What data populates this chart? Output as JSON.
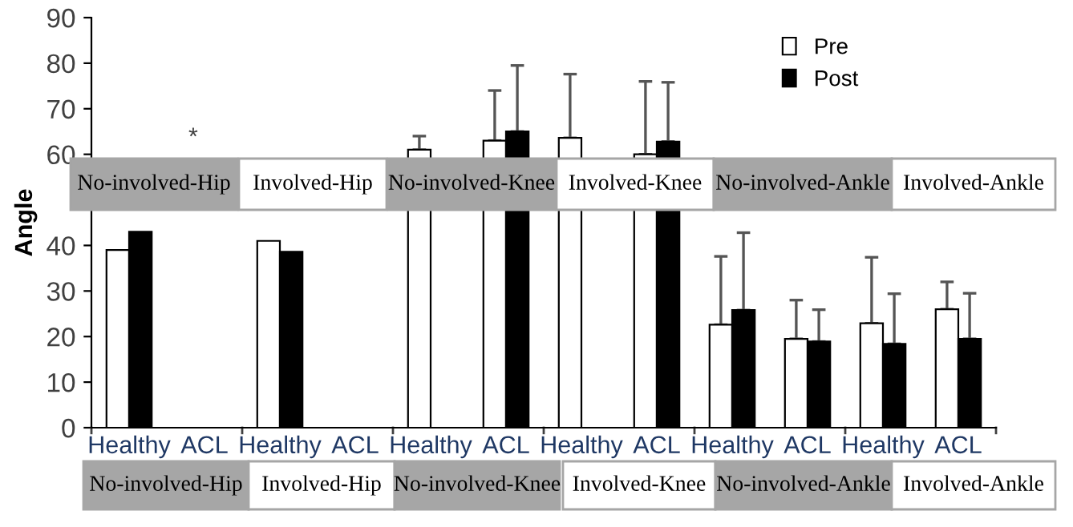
{
  "chart_data": {
    "type": "bar",
    "ylabel": "Angle",
    "categories": [
      "Healthy",
      "ACL",
      "Healthy",
      "ACL",
      "Healthy",
      "ACL",
      "Healthy",
      "ACL",
      "Healthy",
      "ACL",
      "Healthy",
      "ACL"
    ],
    "series": [
      {
        "name": "Pre",
        "color": "#ffffff",
        "values": [
          39,
          null,
          41,
          null,
          61,
          63,
          63.6,
          60,
          22.6,
          19.5,
          22.9,
          26
        ],
        "errors": [
          null,
          null,
          null,
          null,
          [
            61,
            64
          ],
          [
            63,
            74
          ],
          [
            63.6,
            77.6
          ],
          [
            60,
            76
          ],
          [
            22.6,
            37.6
          ],
          [
            19.5,
            28
          ],
          [
            22.9,
            37.4
          ],
          [
            26,
            32
          ]
        ]
      },
      {
        "name": "Post",
        "color": "#000000",
        "values": [
          43,
          null,
          38.6,
          null,
          null,
          65,
          null,
          62.8,
          25.8,
          18.9,
          18.4,
          19.5
        ],
        "errors": [
          null,
          null,
          null,
          null,
          null,
          [
            65,
            79.5
          ],
          null,
          [
            62.8,
            75.8
          ],
          [
            25.8,
            42.8
          ],
          [
            18.9,
            25.9
          ],
          [
            18.4,
            29.4
          ],
          [
            19.5,
            29.5
          ]
        ]
      }
    ],
    "ylim": [
      0,
      90
    ],
    "yticks": [
      0,
      10,
      20,
      30,
      40,
      {
        "value": 50,
        "label": null
      },
      60,
      70,
      80,
      90
    ],
    "legend": "top right",
    "annotations": [
      "*",
      "No-involved-Hip",
      "Involved-Hip",
      "No-involved-Knee",
      "Involved-Knee",
      "No-involved-Ankle",
      "Involved-Ankle",
      "No-involved-Hip",
      "Involved-Hip",
      "No-involved-Knee",
      "Involved-Knee",
      "No-involved-Ankle",
      "Involved-Ankle"
    ]
  }
}
